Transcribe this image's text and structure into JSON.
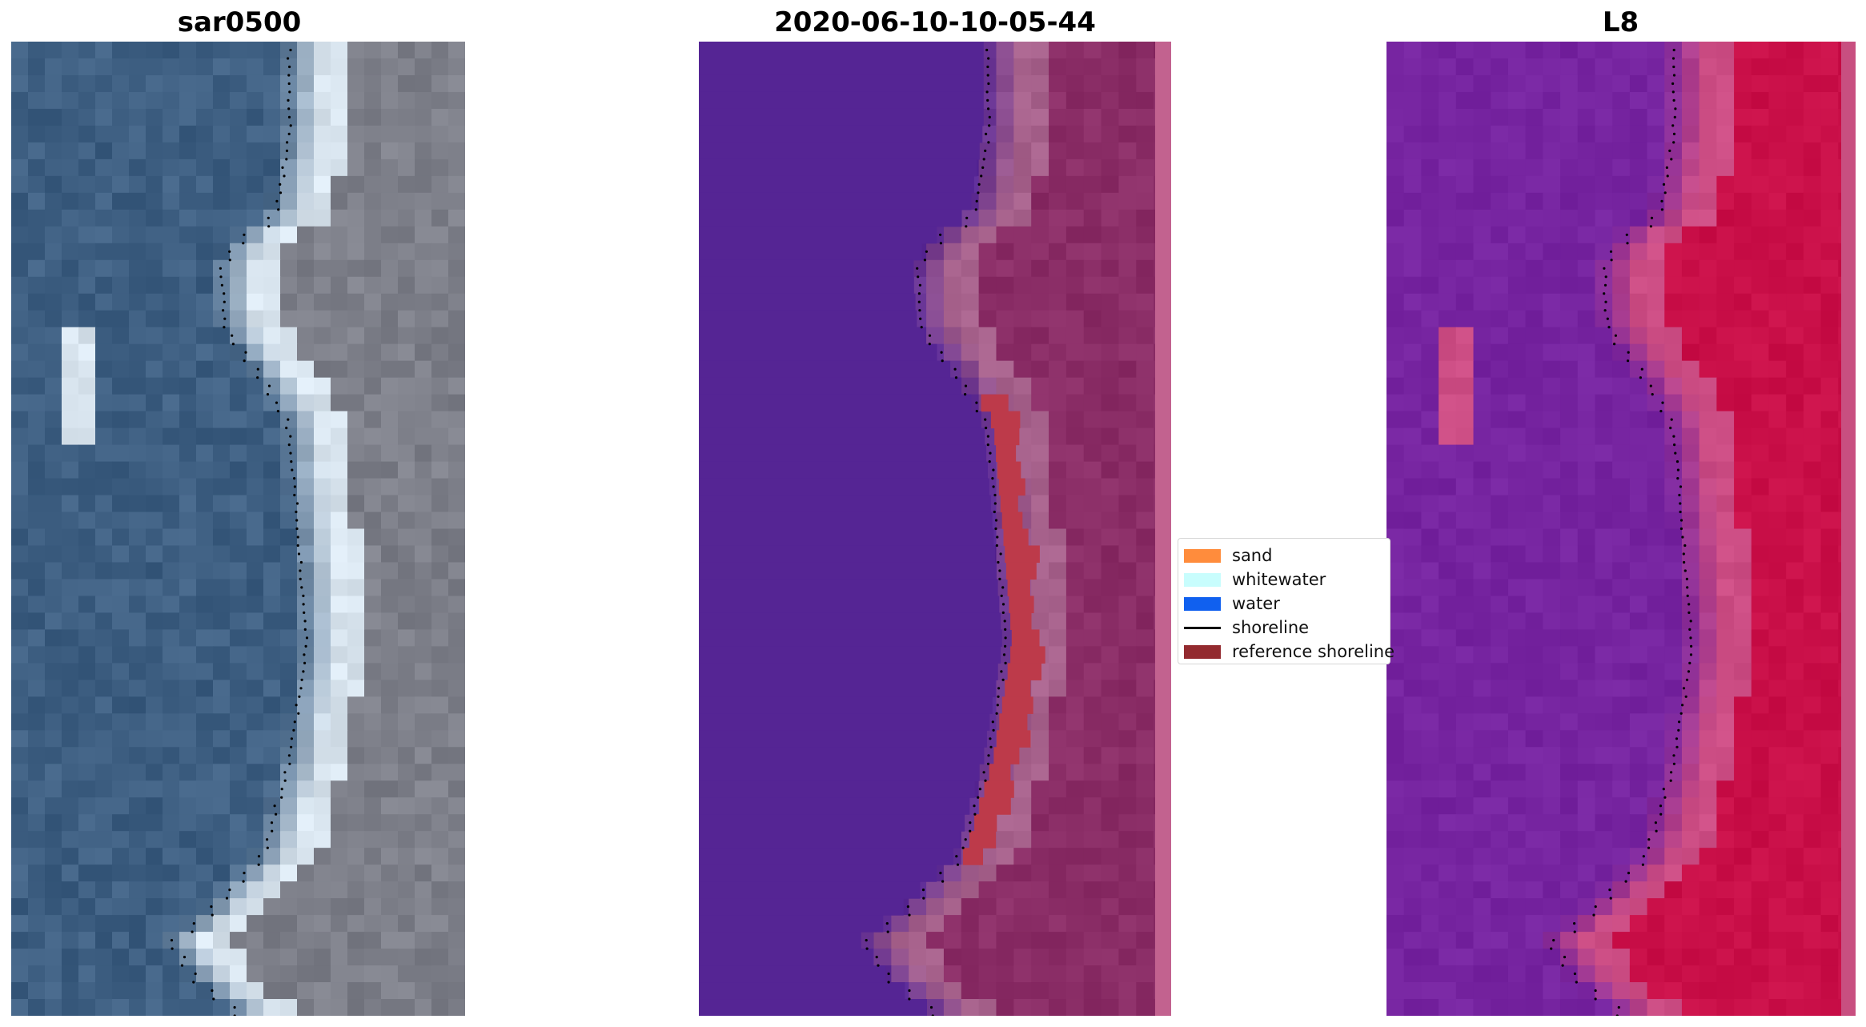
{
  "panels": [
    {
      "title": "sar0500",
      "kind": "rgb-image",
      "description_icon": "satellite-rgb-icon"
    },
    {
      "title": "2020-06-10-10-05-44",
      "kind": "classified-image",
      "description_icon": "classification-map-icon"
    },
    {
      "title": "L8",
      "kind": "index-image",
      "description_icon": "water-index-icon"
    }
  ],
  "legend": {
    "items": [
      {
        "label": "sand",
        "color": "#ff8c3c",
        "type": "patch"
      },
      {
        "label": "whitewater",
        "color": "#c8fdfd",
        "type": "patch"
      },
      {
        "label": "water",
        "color": "#1060ef",
        "type": "patch"
      },
      {
        "label": "shoreline",
        "color": "#000000",
        "type": "line"
      },
      {
        "label": "reference shoreline",
        "color": "#932a2f",
        "type": "patch"
      }
    ]
  },
  "colors": {
    "rgb_water": "#3e5f82",
    "rgb_land": "#7d7f89",
    "rgb_beach": "#d8e4ee",
    "class_water": "#552594",
    "class_land": "#8a2d66",
    "class_sand": "#bd3a4a",
    "index_water": "#7624a0",
    "index_land": "#c90f48",
    "index_mid": "#cc4d84"
  }
}
